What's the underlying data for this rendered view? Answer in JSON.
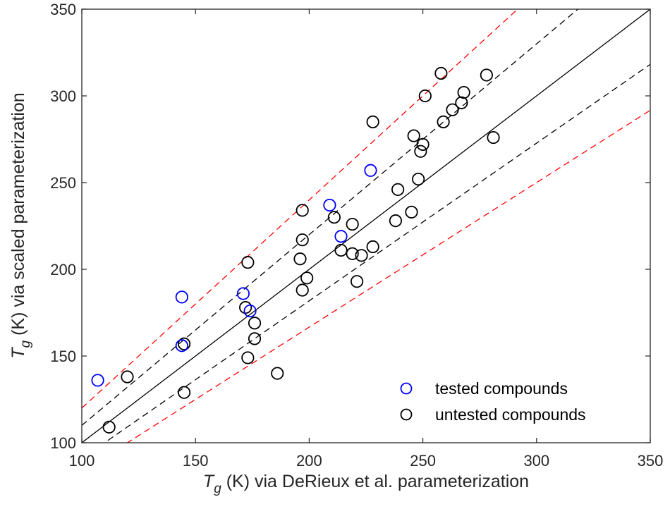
{
  "chart_data": {
    "type": "scatter",
    "xlabel": {
      "symbol": "T",
      "subscript": "g",
      "text": " (K) via DeRieux et al. parameterization"
    },
    "ylabel": {
      "symbol": "T",
      "subscript": "g",
      "text": " (K) via scaled parameterization"
    },
    "xlim": [
      100,
      350
    ],
    "ylim": [
      100,
      350
    ],
    "xticks": [
      100,
      150,
      200,
      250,
      300,
      350
    ],
    "yticks": [
      100,
      150,
      200,
      250,
      300,
      350
    ],
    "grid": false,
    "legend_position": "bottom-right",
    "series": [
      {
        "name": "tested compounds",
        "color": "#0000ff",
        "marker": "open-circle",
        "points": [
          [
            107,
            136
          ],
          [
            144,
            184
          ],
          [
            144,
            156
          ],
          [
            171,
            186
          ],
          [
            174,
            176
          ],
          [
            209,
            237
          ],
          [
            214,
            219
          ],
          [
            227,
            257
          ]
        ]
      },
      {
        "name": "untested compounds",
        "color": "#000000",
        "marker": "open-circle",
        "points": [
          [
            112,
            109
          ],
          [
            120,
            138
          ],
          [
            145,
            157
          ],
          [
            145,
            129
          ],
          [
            173,
            204
          ],
          [
            172,
            178
          ],
          [
            173,
            149
          ],
          [
            176,
            169
          ],
          [
            176,
            160
          ],
          [
            186,
            140
          ],
          [
            197,
            234
          ],
          [
            197,
            217
          ],
          [
            196,
            206
          ],
          [
            197,
            188
          ],
          [
            199,
            195
          ],
          [
            211,
            230
          ],
          [
            214,
            211
          ],
          [
            219,
            226
          ],
          [
            219,
            209
          ],
          [
            223,
            208
          ],
          [
            221,
            193
          ],
          [
            228,
            285
          ],
          [
            228,
            213
          ],
          [
            239,
            246
          ],
          [
            238,
            228
          ],
          [
            245,
            233
          ],
          [
            246,
            277
          ],
          [
            248,
            252
          ],
          [
            249,
            268
          ],
          [
            250,
            272
          ],
          [
            251,
            300
          ],
          [
            258,
            313
          ],
          [
            259,
            285
          ],
          [
            263,
            292
          ],
          [
            267,
            296
          ],
          [
            268,
            302
          ],
          [
            278,
            312
          ],
          [
            281,
            276
          ]
        ]
      }
    ],
    "reference_lines": [
      {
        "style": "solid",
        "color": "#000000",
        "x": [
          100,
          350
        ],
        "y": [
          100,
          350
        ]
      },
      {
        "style": "dashed",
        "color": "#000000",
        "x": [
          100,
          350
        ],
        "y": [
          110,
          385
        ]
      },
      {
        "style": "dashed",
        "color": "#000000",
        "x": [
          100,
          350
        ],
        "y": [
          90.9,
          318.2
        ]
      },
      {
        "style": "dashed",
        "color": "#ff0000",
        "x": [
          100,
          350
        ],
        "y": [
          120,
          420
        ]
      },
      {
        "style": "dashed",
        "color": "#ff0000",
        "x": [
          100,
          350
        ],
        "y": [
          83.3,
          291.7
        ]
      }
    ]
  }
}
